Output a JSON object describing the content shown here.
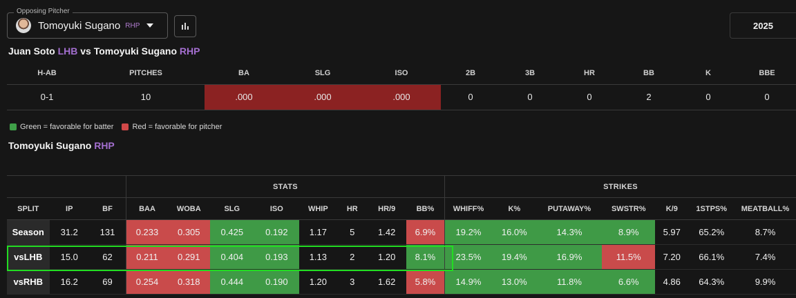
{
  "pitcher_select": {
    "legend": "Opposing Pitcher",
    "name": "Tomoyuki Sugano",
    "hand": "RHP",
    "icon": "chevron-down-icon"
  },
  "chart_button": {
    "icon": "bar-chart-icon"
  },
  "season": "2025",
  "matchup": {
    "batter": "Juan Soto",
    "batter_hand": "LHB",
    "vs": "vs",
    "pitcher": "Tomoyuki Sugano",
    "pitcher_hand": "RHP",
    "headers": [
      "H-AB",
      "PITCHES",
      "BA",
      "SLG",
      "ISO",
      "2B",
      "3B",
      "HR",
      "BB",
      "K",
      "BBE"
    ],
    "values": [
      "0-1",
      "10",
      ".000",
      ".000",
      ".000",
      "0",
      "0",
      "0",
      "2",
      "0",
      "0"
    ]
  },
  "legend": {
    "green": "Green = favorable for batter",
    "red": "Red = favorable for pitcher",
    "colors": {
      "green": "#3f9a46",
      "red": "#c94b4b",
      "dark_red": "#8b2222",
      "highlight": "#22dd22",
      "accent": "#a46fd0"
    }
  },
  "pitcher_section": {
    "name": "Tomoyuki Sugano",
    "hand": "RHP"
  },
  "splits": {
    "group_stats": "STATS",
    "group_strikes": "STRIKES",
    "headers": [
      "SPLIT",
      "IP",
      "BF",
      "BAA",
      "WOBA",
      "SLG",
      "ISO",
      "WHIP",
      "HR",
      "HR/9",
      "BB%",
      "WHIFF%",
      "K%",
      "PUTAWAY%",
      "SWSTR%",
      "K/9",
      "1STPS%",
      "MEATBALL%"
    ],
    "rows": [
      {
        "label": "Season",
        "cells": [
          "31.2",
          "131",
          "0.233",
          "0.305",
          "0.425",
          "0.192",
          "1.17",
          "5",
          "1.42",
          "6.9%",
          "19.2%",
          "16.0%",
          "14.3%",
          "8.9%",
          "5.97",
          "65.2%",
          "8.7%"
        ]
      },
      {
        "label": "vsLHB",
        "cells": [
          "15.0",
          "62",
          "0.211",
          "0.291",
          "0.404",
          "0.193",
          "1.13",
          "2",
          "1.20",
          "8.1%",
          "23.5%",
          "19.4%",
          "16.9%",
          "11.5%",
          "7.20",
          "66.1%",
          "7.4%"
        ]
      },
      {
        "label": "vsRHB",
        "cells": [
          "16.2",
          "69",
          "0.254",
          "0.318",
          "0.444",
          "0.190",
          "1.20",
          "3",
          "1.62",
          "5.8%",
          "14.9%",
          "13.0%",
          "11.8%",
          "6.6%",
          "4.86",
          "64.3%",
          "9.9%"
        ]
      }
    ]
  }
}
